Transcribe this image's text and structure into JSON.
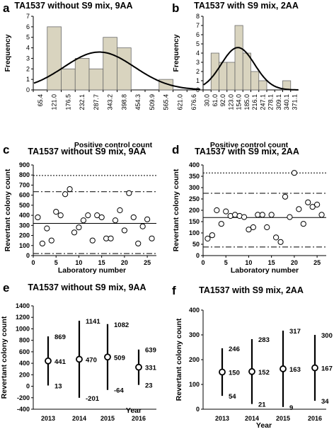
{
  "chart_data": [
    {
      "panel": "a",
      "type": "bar",
      "title": "TA1537 without S9 mix, 9AA",
      "xlabel": "Positive control count",
      "ylabel": "Frequency",
      "categories": [
        "65.4",
        "121.0",
        "176.5",
        "232.1",
        "287.7",
        "343.2",
        "398.8",
        "454.3",
        "509.9",
        "565.4",
        "621.0",
        "676.6"
      ],
      "values": [
        0,
        6,
        2,
        3,
        2,
        5,
        4,
        0,
        0,
        1,
        0,
        0
      ],
      "curve": {
        "name": "normal",
        "mean": 300,
        "sd": 140,
        "peak": 3.6
      },
      "ylim": [
        0,
        7
      ],
      "yticks": [
        "0",
        "1",
        "2",
        "3",
        "4",
        "5",
        "6",
        "7"
      ],
      "bar_color": "#d9d4bf"
    },
    {
      "panel": "b",
      "type": "bar",
      "title": "TA1537 with S9 mix, 2AA",
      "xlabel": "Positive control count",
      "ylabel": "Frequency",
      "categories": [
        "30.0",
        "61.0",
        "92.0",
        "123.0",
        "154.0",
        "185.0",
        "216.1",
        "247.1",
        "278.1",
        "309.1",
        "340.1",
        "371.1"
      ],
      "values": [
        0,
        4,
        3,
        3,
        7,
        4,
        2,
        1,
        0,
        0,
        1,
        0
      ],
      "curve": {
        "name": "normal",
        "mean": 150,
        "sd": 65,
        "peak": 4.6
      },
      "ylim": [
        0,
        8
      ],
      "yticks": [
        "0",
        "1",
        "2",
        "3",
        "4",
        "5",
        "6",
        "7",
        "8"
      ],
      "bar_color": "#d9d4bf"
    },
    {
      "panel": "c",
      "type": "scatter",
      "title": "TA1537 without S9 mix, 9AA",
      "xlabel": "Laboratory number",
      "ylabel": "Revertant colony count",
      "x": [
        1,
        2,
        3,
        4,
        5,
        6,
        7,
        8,
        9,
        10,
        11,
        12,
        13,
        14,
        15,
        16,
        17,
        18,
        19,
        20,
        21,
        22,
        23,
        24,
        25,
        26
      ],
      "y": [
        380,
        120,
        270,
        150,
        435,
        400,
        610,
        660,
        230,
        280,
        350,
        400,
        150,
        400,
        380,
        170,
        170,
        350,
        450,
        250,
        620,
        380,
        120,
        290,
        360,
        170
      ],
      "xlim": [
        0,
        27
      ],
      "ylim": [
        0,
        900
      ],
      "xticks": [
        "0",
        "5",
        "10",
        "15",
        "20",
        "25"
      ],
      "yticks": [
        "0",
        "100",
        "200",
        "300",
        "400",
        "500",
        "600",
        "700",
        "800",
        "900"
      ],
      "lines": {
        "mean": 320,
        "sd2_upper": 635,
        "sd2_lower": 20,
        "sd3_upper": 795
      }
    },
    {
      "panel": "d",
      "type": "scatter",
      "title": "TA1537 with S9 mix, 2AA",
      "xlabel": "Laboratory number",
      "ylabel": "Revertant colony count",
      "x": [
        1,
        2,
        3,
        4,
        5,
        6,
        7,
        8,
        9,
        10,
        11,
        12,
        13,
        14,
        15,
        16,
        17,
        18,
        19,
        20,
        21,
        22,
        23,
        24,
        25,
        26
      ],
      "y": [
        75,
        90,
        200,
        140,
        195,
        175,
        180,
        175,
        170,
        115,
        125,
        180,
        180,
        125,
        180,
        80,
        60,
        260,
        170,
        365,
        205,
        140,
        235,
        215,
        225,
        180
      ],
      "xlim": [
        0,
        27
      ],
      "ylim": [
        0,
        400
      ],
      "xticks": [
        "0",
        "5",
        "10",
        "15",
        "20",
        "25"
      ],
      "yticks": [
        "0",
        "50",
        "100",
        "150",
        "200",
        "250",
        "300",
        "350",
        "400"
      ],
      "lines": {
        "mean": 168,
        "sd2_upper": 275,
        "sd2_lower": 38,
        "sd3_upper": 365
      }
    },
    {
      "panel": "e",
      "type": "error-bar",
      "title": "TA1537 without S9 mix, 9AA",
      "xlabel": "Year",
      "ylabel": "Revertant colony count",
      "categories": [
        "2013",
        "2014",
        "2015",
        "2016"
      ],
      "mean": [
        441,
        470,
        509,
        331
      ],
      "upper": [
        869,
        1141,
        1082,
        639
      ],
      "lower": [
        13,
        -201,
        -64,
        23
      ],
      "mean_labels": [
        "441",
        "470",
        "509",
        "331"
      ],
      "upper_labels": [
        "869",
        "1141",
        "1082",
        "639"
      ],
      "lower_labels": [
        "13",
        "-201",
        "-64",
        "23"
      ],
      "ylim": [
        -400,
        1400
      ],
      "yticks": [
        "-400",
        "-200",
        "0",
        "200",
        "400",
        "600",
        "800",
        "1000",
        "1200",
        "1400"
      ]
    },
    {
      "panel": "f",
      "type": "error-bar",
      "title": "TA1537 with S9 mix, 2AA",
      "xlabel": "Year",
      "ylabel": "Revertant colony count",
      "categories": [
        "2013",
        "2014",
        "2015",
        "2016"
      ],
      "mean": [
        150,
        152,
        163,
        167
      ],
      "upper": [
        246,
        283,
        317,
        300
      ],
      "lower": [
        54,
        21,
        9,
        34
      ],
      "mean_labels": [
        "150",
        "152",
        "163",
        "167"
      ],
      "upper_labels": [
        "246",
        "283",
        "317",
        "300"
      ],
      "lower_labels": [
        "54",
        "21",
        "9",
        "34"
      ],
      "ylim": [
        0,
        400
      ],
      "yticks": [
        "0",
        "100",
        "200",
        "300",
        "400"
      ]
    }
  ]
}
